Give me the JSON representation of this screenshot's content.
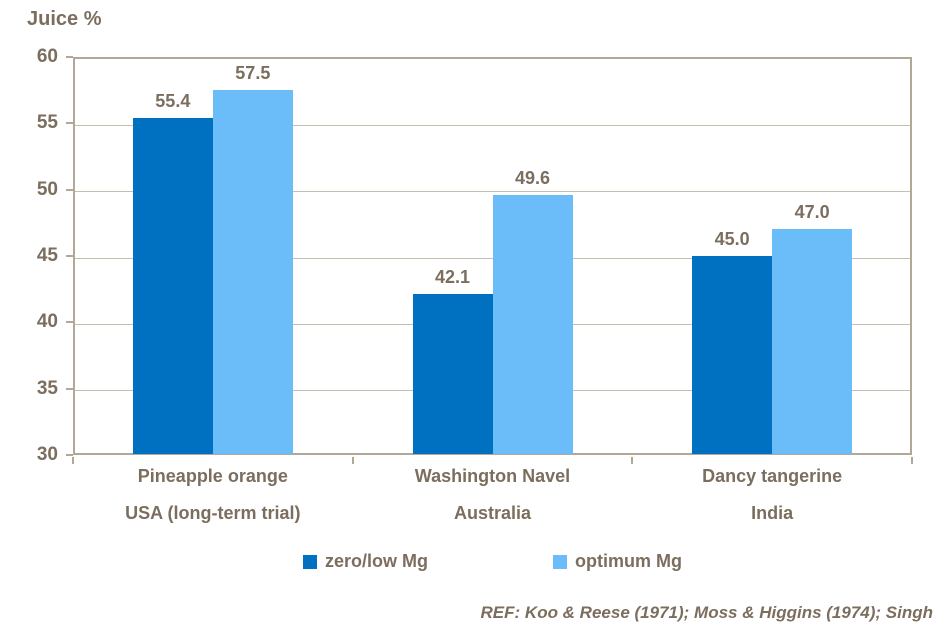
{
  "chart_data": {
    "type": "bar",
    "title": "Juice %",
    "categories": [
      {
        "line1": "Pineapple orange",
        "line2": "USA (long-term trial)"
      },
      {
        "line1": "Washington Navel",
        "line2": "Australia"
      },
      {
        "line1": "Dancy tangerine",
        "line2": "India"
      }
    ],
    "series": [
      {
        "name": "zero/low Mg",
        "color": "#0070c0",
        "values": [
          55.4,
          42.1,
          45.0
        ],
        "labels": [
          "55.4",
          "42.1",
          "45.0"
        ]
      },
      {
        "name": "optimum Mg",
        "color": "#6abdf9",
        "values": [
          57.5,
          49.6,
          47.0
        ],
        "labels": [
          "57.5",
          "49.6",
          "47.0"
        ]
      }
    ],
    "ylabel": "Juice %",
    "ylim": [
      30,
      60
    ],
    "yticks": [
      30,
      35,
      40,
      45,
      50,
      55,
      60
    ],
    "grid": "horizontal",
    "legend_position": "bottom",
    "footnote": "REF: Koo & Reese (1971); Moss & Higgins (1974); Singh",
    "colors": {
      "text": "#7c6e5e",
      "plot_border": "#b3a897",
      "gridline": "#c6beb1",
      "background": "#ffffff"
    }
  }
}
